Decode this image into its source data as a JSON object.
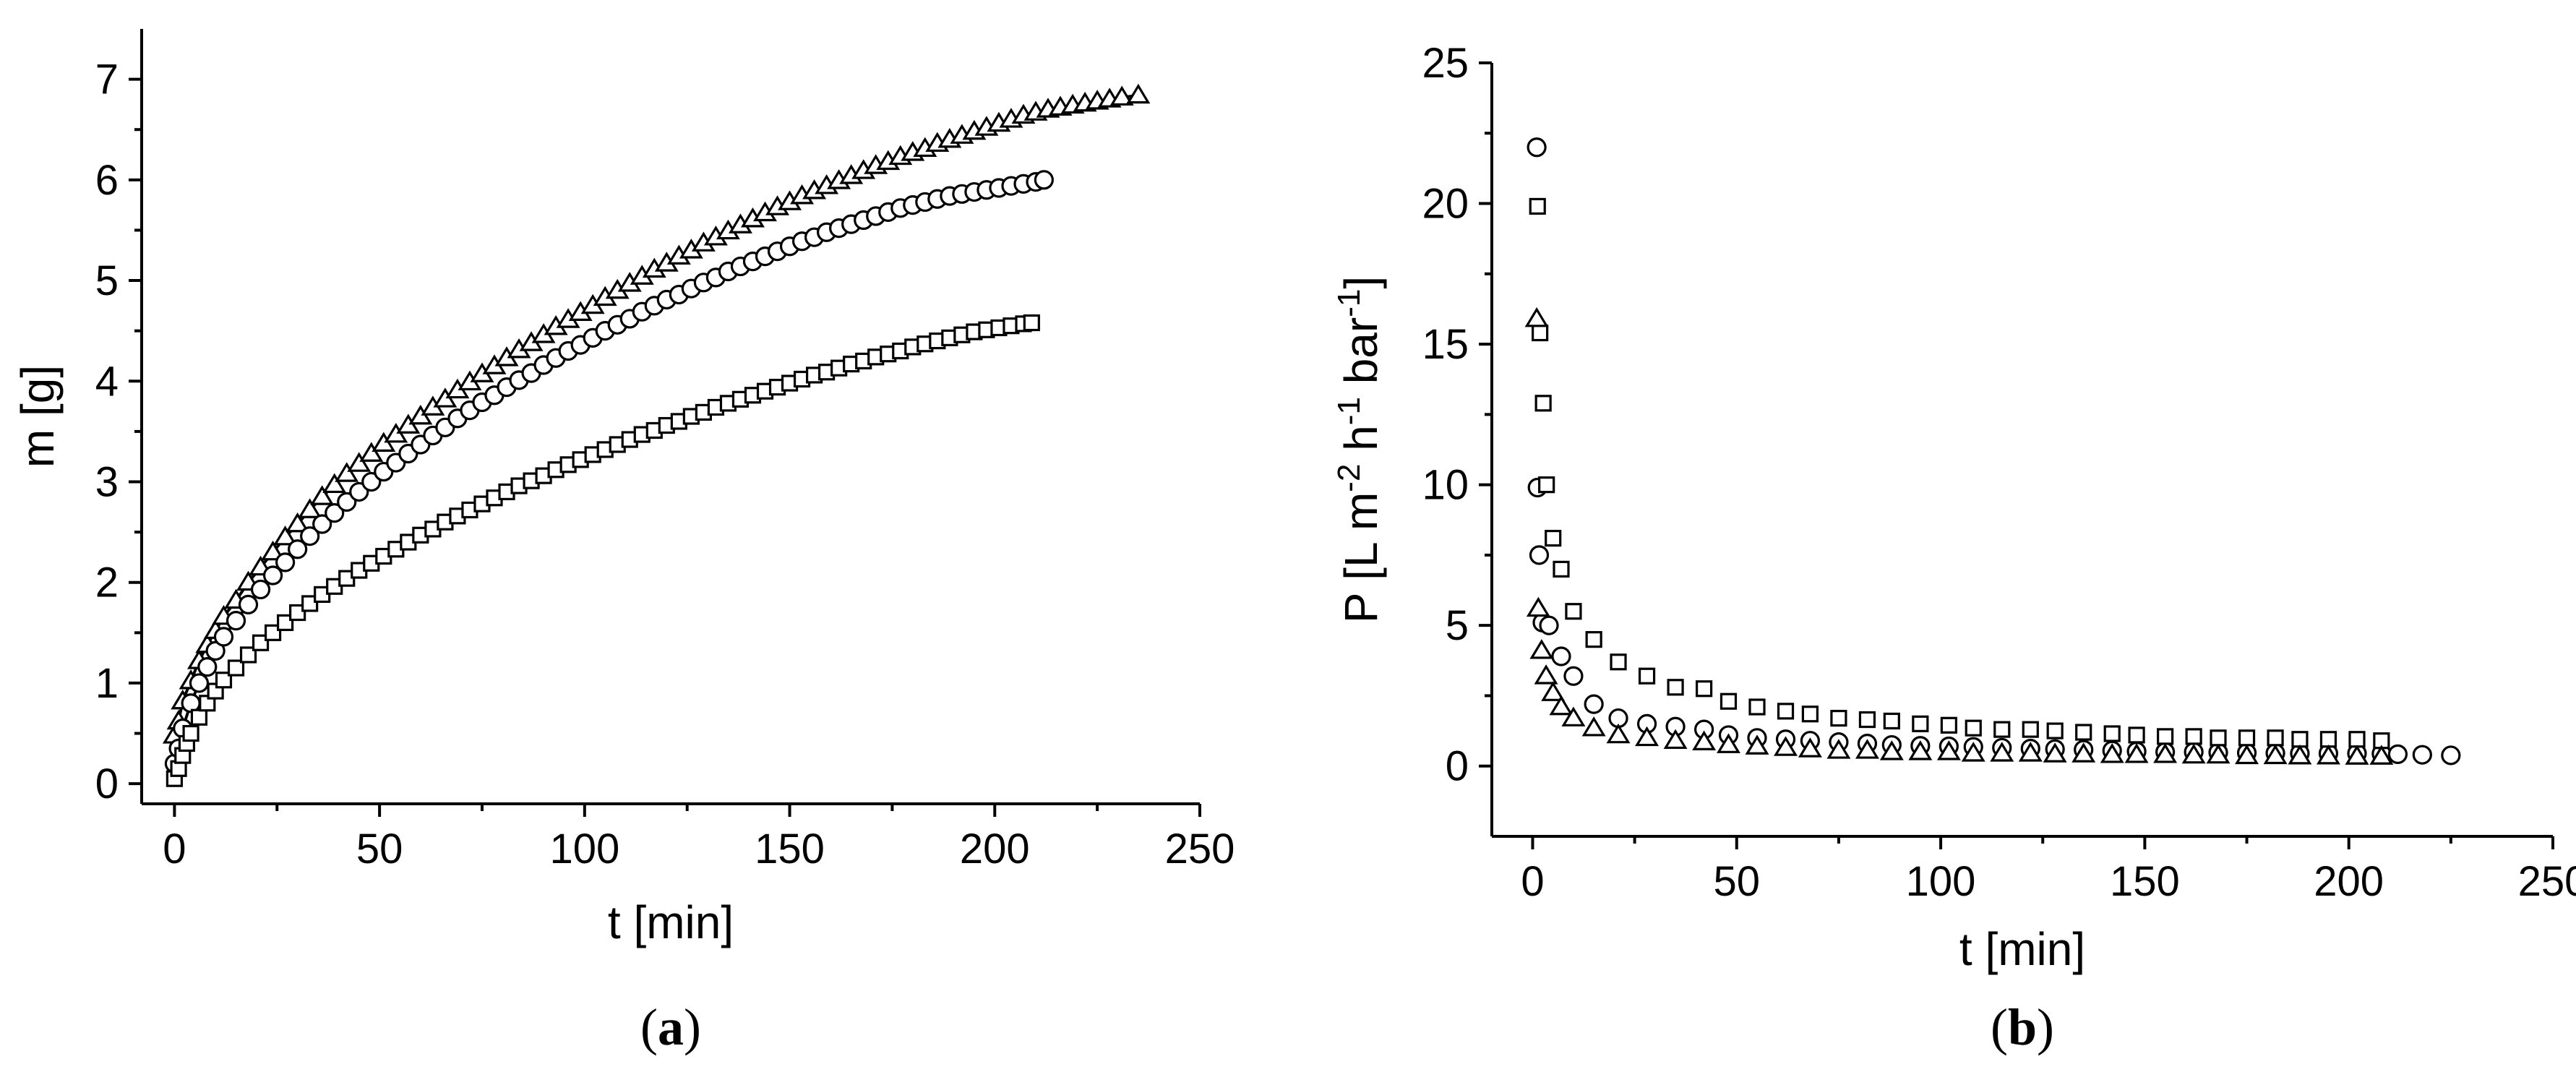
{
  "chart_data": [
    {
      "type": "scatter",
      "panel_label": "a",
      "xlabel": "t [min]",
      "ylabel": "m [g]",
      "xlim": [
        -8,
        250
      ],
      "ylim": [
        -0.2,
        7.5
      ],
      "xticks": [
        0,
        50,
        100,
        150,
        200,
        250
      ],
      "yticks": [
        0,
        1,
        2,
        3,
        4,
        5,
        6,
        7
      ],
      "legend": "none",
      "grid": false,
      "fit_lines": true,
      "series": [
        {
          "marker": "triangle",
          "x": [
            0,
            1,
            2,
            4,
            6,
            8,
            10,
            12,
            15,
            18,
            21,
            24,
            27,
            30,
            33,
            36,
            39,
            42,
            45,
            48,
            51,
            54,
            57,
            60,
            63,
            66,
            69,
            72,
            75,
            78,
            81,
            84,
            87,
            90,
            93,
            96,
            99,
            102,
            105,
            108,
            111,
            114,
            117,
            120,
            123,
            126,
            129,
            132,
            135,
            138,
            141,
            144,
            147,
            150,
            153,
            156,
            159,
            162,
            165,
            168,
            171,
            174,
            177,
            180,
            183,
            186,
            189,
            192,
            195,
            198,
            201,
            204,
            207,
            210,
            213,
            216,
            219,
            222,
            225,
            228,
            231,
            235
          ],
          "y": [
            0.48,
            0.62,
            0.82,
            1.02,
            1.22,
            1.38,
            1.52,
            1.66,
            1.82,
            2.0,
            2.15,
            2.3,
            2.45,
            2.58,
            2.72,
            2.85,
            2.97,
            3.08,
            3.18,
            3.28,
            3.38,
            3.47,
            3.56,
            3.65,
            3.74,
            3.82,
            3.91,
            3.99,
            4.07,
            4.15,
            4.23,
            4.31,
            4.38,
            4.46,
            4.54,
            4.61,
            4.68,
            4.75,
            4.83,
            4.9,
            4.97,
            5.04,
            5.11,
            5.17,
            5.24,
            5.3,
            5.37,
            5.43,
            5.49,
            5.55,
            5.61,
            5.67,
            5.73,
            5.78,
            5.84,
            5.89,
            5.94,
            5.99,
            6.04,
            6.09,
            6.14,
            6.18,
            6.23,
            6.27,
            6.31,
            6.36,
            6.4,
            6.44,
            6.48,
            6.52,
            6.56,
            6.6,
            6.64,
            6.67,
            6.7,
            6.72,
            6.74,
            6.76,
            6.78,
            6.8,
            6.82,
            6.84
          ]
        },
        {
          "marker": "circle",
          "x": [
            0,
            1,
            2,
            4,
            6,
            8,
            10,
            12,
            15,
            18,
            21,
            24,
            27,
            30,
            33,
            36,
            39,
            42,
            45,
            48,
            51,
            54,
            57,
            60,
            63,
            66,
            69,
            72,
            75,
            78,
            81,
            84,
            87,
            90,
            93,
            96,
            99,
            102,
            105,
            108,
            111,
            114,
            117,
            120,
            123,
            126,
            129,
            132,
            135,
            138,
            141,
            144,
            147,
            150,
            153,
            156,
            159,
            162,
            165,
            168,
            171,
            174,
            177,
            180,
            183,
            186,
            189,
            192,
            195,
            198,
            201,
            204,
            207,
            210,
            212
          ],
          "y": [
            0.2,
            0.35,
            0.55,
            0.8,
            1.0,
            1.16,
            1.32,
            1.46,
            1.62,
            1.78,
            1.93,
            2.07,
            2.2,
            2.33,
            2.46,
            2.58,
            2.69,
            2.8,
            2.9,
            3.0,
            3.1,
            3.19,
            3.28,
            3.37,
            3.46,
            3.54,
            3.63,
            3.71,
            3.79,
            3.86,
            3.94,
            4.01,
            4.08,
            4.16,
            4.23,
            4.3,
            4.36,
            4.43,
            4.5,
            4.56,
            4.62,
            4.69,
            4.75,
            4.81,
            4.86,
            4.92,
            4.98,
            5.03,
            5.09,
            5.14,
            5.19,
            5.24,
            5.29,
            5.34,
            5.39,
            5.43,
            5.48,
            5.52,
            5.56,
            5.6,
            5.64,
            5.68,
            5.72,
            5.75,
            5.78,
            5.81,
            5.84,
            5.86,
            5.88,
            5.9,
            5.92,
            5.94,
            5.96,
            5.98,
            6.0
          ]
        },
        {
          "marker": "square",
          "x": [
            0,
            1,
            2,
            3,
            4,
            6,
            8,
            10,
            12,
            15,
            18,
            21,
            24,
            27,
            30,
            33,
            36,
            39,
            42,
            45,
            48,
            51,
            54,
            57,
            60,
            63,
            66,
            69,
            72,
            75,
            78,
            81,
            84,
            87,
            90,
            93,
            96,
            99,
            102,
            105,
            108,
            111,
            114,
            117,
            120,
            123,
            126,
            129,
            132,
            135,
            138,
            141,
            144,
            147,
            150,
            153,
            156,
            159,
            162,
            165,
            168,
            171,
            174,
            177,
            180,
            183,
            186,
            189,
            192,
            195,
            198,
            201,
            204,
            207,
            209
          ],
          "y": [
            0.05,
            0.15,
            0.28,
            0.4,
            0.5,
            0.66,
            0.8,
            0.92,
            1.03,
            1.15,
            1.28,
            1.4,
            1.5,
            1.6,
            1.7,
            1.79,
            1.88,
            1.96,
            2.04,
            2.12,
            2.19,
            2.26,
            2.33,
            2.4,
            2.47,
            2.53,
            2.6,
            2.66,
            2.72,
            2.78,
            2.84,
            2.9,
            2.96,
            3.01,
            3.06,
            3.12,
            3.17,
            3.22,
            3.27,
            3.32,
            3.37,
            3.42,
            3.47,
            3.51,
            3.56,
            3.6,
            3.65,
            3.69,
            3.74,
            3.78,
            3.82,
            3.86,
            3.9,
            3.94,
            3.98,
            4.02,
            4.06,
            4.09,
            4.13,
            4.17,
            4.2,
            4.24,
            4.27,
            4.3,
            4.34,
            4.37,
            4.4,
            4.43,
            4.46,
            4.49,
            4.51,
            4.53,
            4.55,
            4.57,
            4.58
          ]
        }
      ]
    },
    {
      "type": "scatter",
      "panel_label": "b",
      "xlabel": "t [min]",
      "ylabel": "P [L m-2 h-1 bar-1]",
      "ylabel_parts": [
        "P [L m",
        "-2",
        " h",
        "-1",
        " bar",
        "-1",
        "]"
      ],
      "xlim": [
        -10,
        250
      ],
      "ylim": [
        -2.5,
        25
      ],
      "xticks": [
        0,
        50,
        100,
        150,
        200,
        250
      ],
      "yticks": [
        0,
        5,
        10,
        15,
        20,
        25
      ],
      "legend": "none",
      "grid": false,
      "series": [
        {
          "marker": "circle",
          "x": [
            1,
            1.2,
            1.6,
            2.4,
            4,
            7,
            10,
            15,
            21,
            28,
            35,
            42,
            48,
            55,
            62,
            68,
            75,
            82,
            88,
            95,
            102,
            108,
            115,
            122,
            128,
            135,
            142,
            148,
            155,
            162,
            168,
            175,
            182,
            188,
            195,
            202,
            208,
            212,
            218,
            225
          ],
          "y": [
            22,
            9.9,
            7.5,
            5.1,
            5.0,
            3.9,
            3.2,
            2.2,
            1.7,
            1.5,
            1.4,
            1.3,
            1.1,
            1.0,
            0.95,
            0.9,
            0.85,
            0.8,
            0.75,
            0.72,
            0.7,
            0.68,
            0.65,
            0.62,
            0.6,
            0.58,
            0.55,
            0.52,
            0.5,
            0.5,
            0.48,
            0.47,
            0.46,
            0.45,
            0.45,
            0.45,
            0.44,
            0.42,
            0.4,
            0.38
          ]
        },
        {
          "marker": "square",
          "x": [
            1.2,
            1.8,
            2.6,
            3.4,
            5,
            7,
            10,
            15,
            21,
            28,
            35,
            42,
            48,
            55,
            62,
            68,
            75,
            82,
            88,
            95,
            102,
            108,
            115,
            122,
            128,
            135,
            142,
            148,
            155,
            162,
            168,
            175,
            182,
            188,
            195,
            202,
            208
          ],
          "y": [
            19.9,
            15.4,
            12.9,
            10.0,
            8.1,
            7.0,
            5.5,
            4.5,
            3.7,
            3.2,
            2.8,
            2.75,
            2.3,
            2.1,
            1.95,
            1.85,
            1.7,
            1.65,
            1.6,
            1.5,
            1.45,
            1.35,
            1.3,
            1.3,
            1.25,
            1.2,
            1.15,
            1.1,
            1.05,
            1.05,
            1.0,
            1.0,
            1.0,
            0.95,
            0.95,
            0.95,
            0.9
          ]
        },
        {
          "marker": "triangle",
          "x": [
            1,
            1.4,
            2.2,
            3.3,
            5,
            7,
            10,
            15,
            21,
            28,
            35,
            42,
            48,
            55,
            62,
            68,
            75,
            82,
            88,
            95,
            102,
            108,
            115,
            122,
            128,
            135,
            142,
            148,
            155,
            162,
            168,
            175,
            182,
            188,
            195,
            202,
            208
          ],
          "y": [
            15.9,
            5.6,
            4.1,
            3.2,
            2.6,
            2.1,
            1.7,
            1.35,
            1.1,
            1.0,
            0.9,
            0.85,
            0.75,
            0.7,
            0.65,
            0.6,
            0.55,
            0.55,
            0.5,
            0.5,
            0.5,
            0.45,
            0.45,
            0.45,
            0.42,
            0.42,
            0.4,
            0.4,
            0.4,
            0.38,
            0.38,
            0.36,
            0.36,
            0.35,
            0.35,
            0.34,
            0.34
          ]
        }
      ]
    }
  ]
}
